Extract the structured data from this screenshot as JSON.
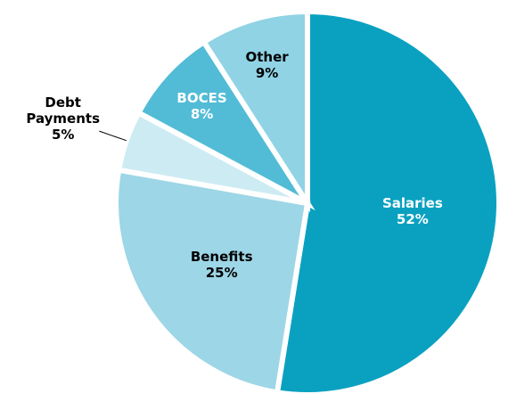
{
  "chart_data": {
    "type": "pie",
    "categories": [
      "Salaries",
      "Benefits",
      "Debt Payments",
      "BOCES",
      "Other"
    ],
    "values": [
      52,
      25,
      5,
      8,
      9
    ],
    "value_labels": [
      "52%",
      "25%",
      "5%",
      "8%",
      "9%"
    ],
    "colors": [
      "#0aa1c1",
      "#9dd6e6",
      "#cdebf3",
      "#52bcd6",
      "#8fd3e5"
    ]
  }
}
